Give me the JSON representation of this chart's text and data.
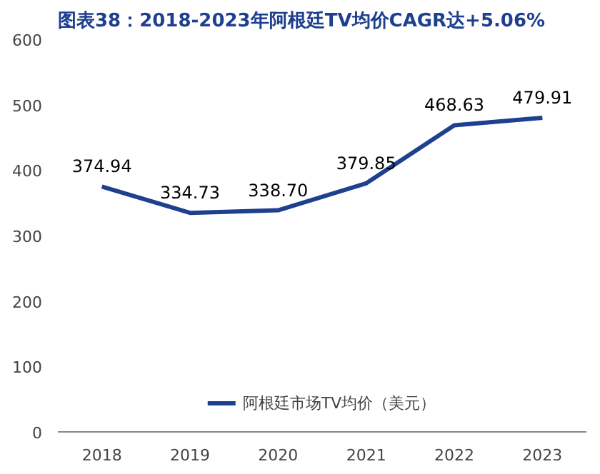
{
  "chart_data": {
    "type": "line",
    "title": "图表38：2018-2023年阿根廷TV均价CAGR达+5.06%",
    "categories": [
      "2018",
      "2019",
      "2020",
      "2021",
      "2022",
      "2023"
    ],
    "series": [
      {
        "name": "阿根廷市场TV均价（美元）",
        "color": "#1f3f8f",
        "values": [
          374.94,
          334.73,
          338.7,
          379.85,
          468.63,
          479.91
        ],
        "value_labels": [
          "374.94",
          "334.73",
          "338.70",
          "379.85",
          "468.63",
          "479.91"
        ]
      }
    ],
    "ylim": [
      0,
      600
    ],
    "yticks": [
      0,
      100,
      200,
      300,
      400,
      500,
      600
    ],
    "grid": false,
    "legend": "bottom",
    "marker": "none",
    "line_style": "solid"
  }
}
